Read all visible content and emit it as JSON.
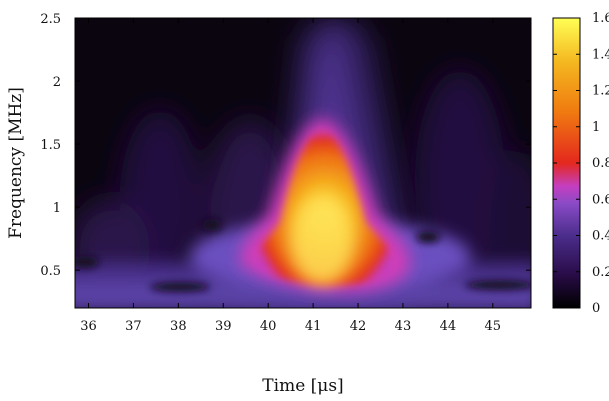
{
  "chart_data": {
    "type": "heatmap",
    "title": "",
    "xlabel": "Time [μs]",
    "ylabel": "Frequency [MHz]",
    "xlim": [
      35.7,
      45.85
    ],
    "ylim": [
      0.2,
      2.5
    ],
    "x_ticks": [
      "36",
      "37",
      "38",
      "39",
      "40",
      "41",
      "42",
      "43",
      "44",
      "45"
    ],
    "y_ticks": [
      "0.5",
      "1",
      "1.5",
      "2",
      "2.5"
    ],
    "colorbar": {
      "range": [
        0,
        1.6
      ],
      "ticks": [
        "0",
        "0.2",
        "0.4",
        "0.6",
        "0.8",
        "1",
        "1.2",
        "1.4",
        "1.6"
      ],
      "colormap": [
        "#000000",
        "#2a0d4a",
        "#4b2d8c",
        "#8a4bc6",
        "#c43ec0",
        "#e4281e",
        "#f07c10",
        "#f4b820",
        "#ffff55"
      ]
    },
    "features": [
      {
        "name": "main-burst",
        "time_center": 41.2,
        "freq_center": 0.85,
        "peak_value": 1.45
      },
      {
        "name": "broadband-plume",
        "time_center": 41.2,
        "freq_range": [
          0.3,
          2.5
        ],
        "value": 0.4
      },
      {
        "name": "low-freq-band",
        "freq_center": 0.35,
        "time_range": [
          35.7,
          45.85
        ],
        "value": 0.35
      }
    ]
  }
}
